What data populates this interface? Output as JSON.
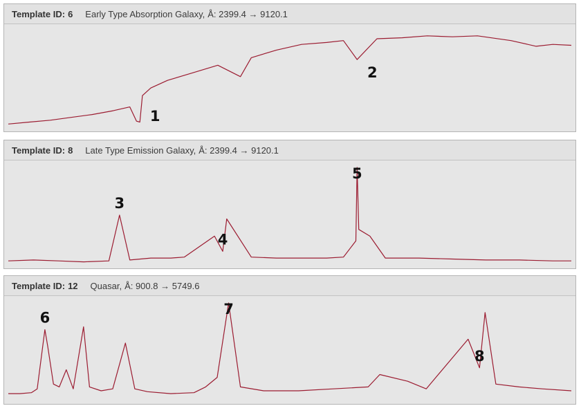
{
  "colors": {
    "spectrum": "#9b1b30",
    "panel_bg": "#e6e6e6",
    "border": "#b4b4b4"
  },
  "panels": [
    {
      "id_label": "Template ID:",
      "id_value": "6",
      "name": "Early Type Absorption Galaxy,",
      "range_text": "Å: 2399.4 → 9120.1"
    },
    {
      "id_label": "Template ID:",
      "id_value": "8",
      "name": "Late Type Emission Galaxy,",
      "range_text": "Å: 2399.4 → 9120.1"
    },
    {
      "id_label": "Template ID:",
      "id_value": "12",
      "name": "Quasar,",
      "range_text": "Å: 900.8 → 5749.6"
    }
  ],
  "chart_data": [
    {
      "type": "line",
      "title": "Template ID: 6 Early Type Absorption Galaxy",
      "x_range": [
        2399.4,
        9120.1
      ],
      "grid": false,
      "series": [
        {
          "x": [
            2399.4,
            2650,
            2900,
            3150,
            3400,
            3650,
            3850,
            3930,
            3970,
            4000,
            4100,
            4300,
            4600,
            4900,
            5170,
            5300,
            5600,
            5900,
            6200,
            6400,
            6563,
            6800,
            7100,
            7400,
            7700,
            8000,
            8400,
            8700,
            8900,
            9120.1
          ],
          "y": [
            0.02,
            0.04,
            0.06,
            0.09,
            0.12,
            0.16,
            0.2,
            0.05,
            0.04,
            0.32,
            0.4,
            0.48,
            0.56,
            0.64,
            0.52,
            0.72,
            0.8,
            0.86,
            0.88,
            0.9,
            0.7,
            0.92,
            0.93,
            0.95,
            0.94,
            0.95,
            0.9,
            0.84,
            0.86,
            0.85
          ]
        }
      ],
      "markers": [
        {
          "label": "1",
          "x": 3970
        },
        {
          "label": "2",
          "x": 6563
        }
      ]
    },
    {
      "type": "line",
      "title": "Template ID: 8 Late Type Emission Galaxy",
      "x_range": [
        2399.4,
        9120.1
      ],
      "grid": false,
      "series": [
        {
          "x": [
            2399.4,
            2700,
            3000,
            3300,
            3600,
            3727,
            3850,
            4100,
            4340,
            4500,
            4861,
            4959,
            5007,
            5300,
            5600,
            5900,
            6200,
            6400,
            6548,
            6563,
            6583,
            6716,
            6900,
            7300,
            7700,
            8100,
            8500,
            8900,
            9120.1
          ],
          "y": [
            0.02,
            0.03,
            0.02,
            0.01,
            0.02,
            0.5,
            0.03,
            0.05,
            0.05,
            0.06,
            0.28,
            0.12,
            0.46,
            0.06,
            0.05,
            0.05,
            0.05,
            0.06,
            0.23,
            1.0,
            0.35,
            0.28,
            0.05,
            0.05,
            0.04,
            0.03,
            0.03,
            0.02,
            0.02
          ]
        }
      ],
      "markers": [
        {
          "label": "3",
          "x": 3727
        },
        {
          "label": "4",
          "x": 4959
        },
        {
          "label": "5",
          "x": 6563
        }
      ]
    },
    {
      "type": "line",
      "title": "Template ID: 12 Quasar",
      "x_range": [
        900.8,
        5749.6
      ],
      "grid": false,
      "series": [
        {
          "x": [
            900.8,
            1000,
            1100,
            1150,
            1216,
            1240,
            1290,
            1340,
            1400,
            1460,
            1549,
            1600,
            1700,
            1800,
            1909,
            1990,
            2100,
            2300,
            2500,
            2600,
            2700,
            2798,
            2900,
            3100,
            3400,
            3700,
            4000,
            4100,
            4340,
            4500,
            4861,
            4959,
            5007,
            5100,
            5300,
            5500,
            5749.6
          ],
          "y": [
            0.05,
            0.05,
            0.06,
            0.1,
            0.72,
            0.55,
            0.15,
            0.12,
            0.3,
            0.1,
            0.75,
            0.12,
            0.08,
            0.1,
            0.58,
            0.1,
            0.07,
            0.05,
            0.06,
            0.12,
            0.22,
            1.0,
            0.12,
            0.08,
            0.08,
            0.1,
            0.12,
            0.25,
            0.18,
            0.1,
            0.62,
            0.32,
            0.9,
            0.15,
            0.12,
            0.1,
            0.08
          ]
        }
      ],
      "markers": [
        {
          "label": "6",
          "x": 1216
        },
        {
          "label": "7",
          "x": 2798
        },
        {
          "label": "8",
          "x": 4959
        }
      ]
    }
  ]
}
